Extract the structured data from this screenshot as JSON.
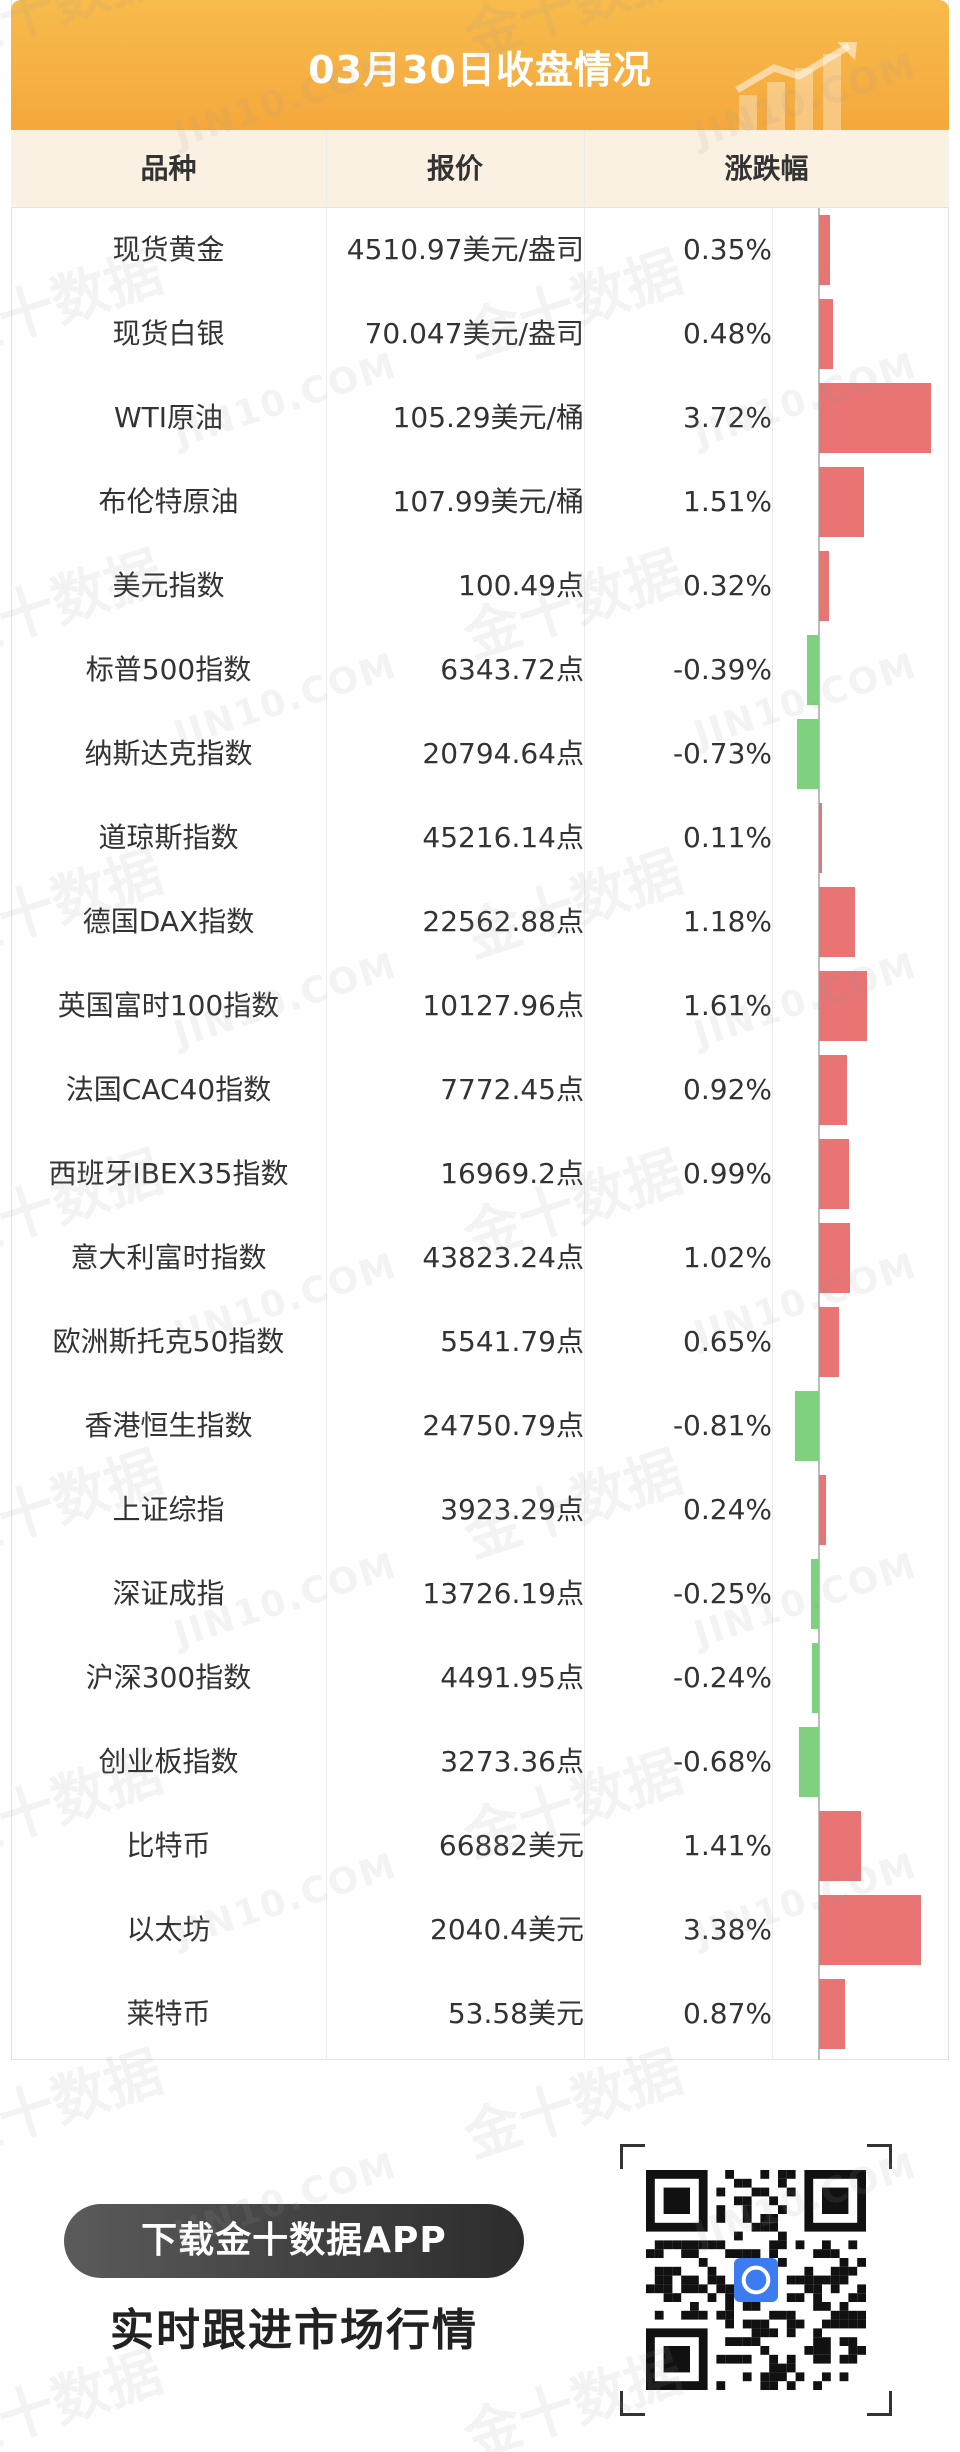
{
  "header": {
    "title": "03月30日收盘情况"
  },
  "columns": {
    "name": "品种",
    "price": "报价",
    "change": "涨跌幅"
  },
  "rows": [
    {
      "name": "现货黄金",
      "price": "4510.97美元/盎司",
      "pct": "0.35%"
    },
    {
      "name": "现货白银",
      "price": "70.047美元/盎司",
      "pct": "0.48%"
    },
    {
      "name": "WTI原油",
      "price": "105.29美元/桶",
      "pct": "3.72%"
    },
    {
      "name": "布伦特原油",
      "price": "107.99美元/桶",
      "pct": "1.51%"
    },
    {
      "name": "美元指数",
      "price": "100.49点",
      "pct": "0.32%"
    },
    {
      "name": "标普500指数",
      "price": "6343.72点",
      "pct": "-0.39%"
    },
    {
      "name": "纳斯达克指数",
      "price": "20794.64点",
      "pct": "-0.73%"
    },
    {
      "name": "道琼斯指数",
      "price": "45216.14点",
      "pct": "0.11%"
    },
    {
      "name": "德国DAX指数",
      "price": "22562.88点",
      "pct": "1.18%"
    },
    {
      "name": "英国富时100指数",
      "price": "10127.96点",
      "pct": "1.61%"
    },
    {
      "name": "法国CAC40指数",
      "price": "7772.45点",
      "pct": "0.92%"
    },
    {
      "name": "西班牙IBEX35指数",
      "price": "16969.2点",
      "pct": "0.99%"
    },
    {
      "name": "意大利富时指数",
      "price": "43823.24点",
      "pct": "1.02%"
    },
    {
      "name": "欧洲斯托克50指数",
      "price": "5541.79点",
      "pct": "0.65%"
    },
    {
      "name": "香港恒生指数",
      "price": "24750.79点",
      "pct": "-0.81%"
    },
    {
      "name": "上证综指",
      "price": "3923.29点",
      "pct": "0.24%"
    },
    {
      "name": "深证成指",
      "price": "13726.19点",
      "pct": "-0.25%"
    },
    {
      "name": "沪深300指数",
      "price": "4491.95点",
      "pct": "-0.24%"
    },
    {
      "name": "创业板指数",
      "price": "3273.36点",
      "pct": "-0.68%"
    },
    {
      "name": "比特币",
      "price": "66882美元",
      "pct": "1.41%"
    },
    {
      "name": "以太坊",
      "price": "2040.4美元",
      "pct": "3.38%"
    },
    {
      "name": "莱特币",
      "price": "53.58美元",
      "pct": "0.87%"
    }
  ],
  "chart_data": {
    "type": "bar",
    "categories": [
      "现货黄金",
      "现货白银",
      "WTI原油",
      "布伦特原油",
      "美元指数",
      "标普500指数",
      "纳斯达克指数",
      "道琼斯指数",
      "德国DAX指数",
      "英国富时100指数",
      "法国CAC40指数",
      "西班牙IBEX35指数",
      "意大利富时指数",
      "欧洲斯托克50指数",
      "香港恒生指数",
      "上证综指",
      "深证成指",
      "沪深300指数",
      "创业板指数",
      "比特币",
      "以太坊",
      "莱特币"
    ],
    "values": [
      0.35,
      0.48,
      3.72,
      1.51,
      0.32,
      -0.39,
      -0.73,
      0.11,
      1.18,
      1.61,
      0.92,
      0.99,
      1.02,
      0.65,
      -0.81,
      0.24,
      -0.25,
      -0.24,
      -0.68,
      1.41,
      3.38,
      0.87
    ],
    "orientation": "horizontal",
    "colors": {
      "positive": "#e87474",
      "negative": "#7fd17f"
    }
  },
  "promo": {
    "button": "下载金十数据APP",
    "subtitle": "实时跟进市场行情"
  },
  "watermark": {
    "cn": "金十数据",
    "en": "JIN10.COM"
  }
}
